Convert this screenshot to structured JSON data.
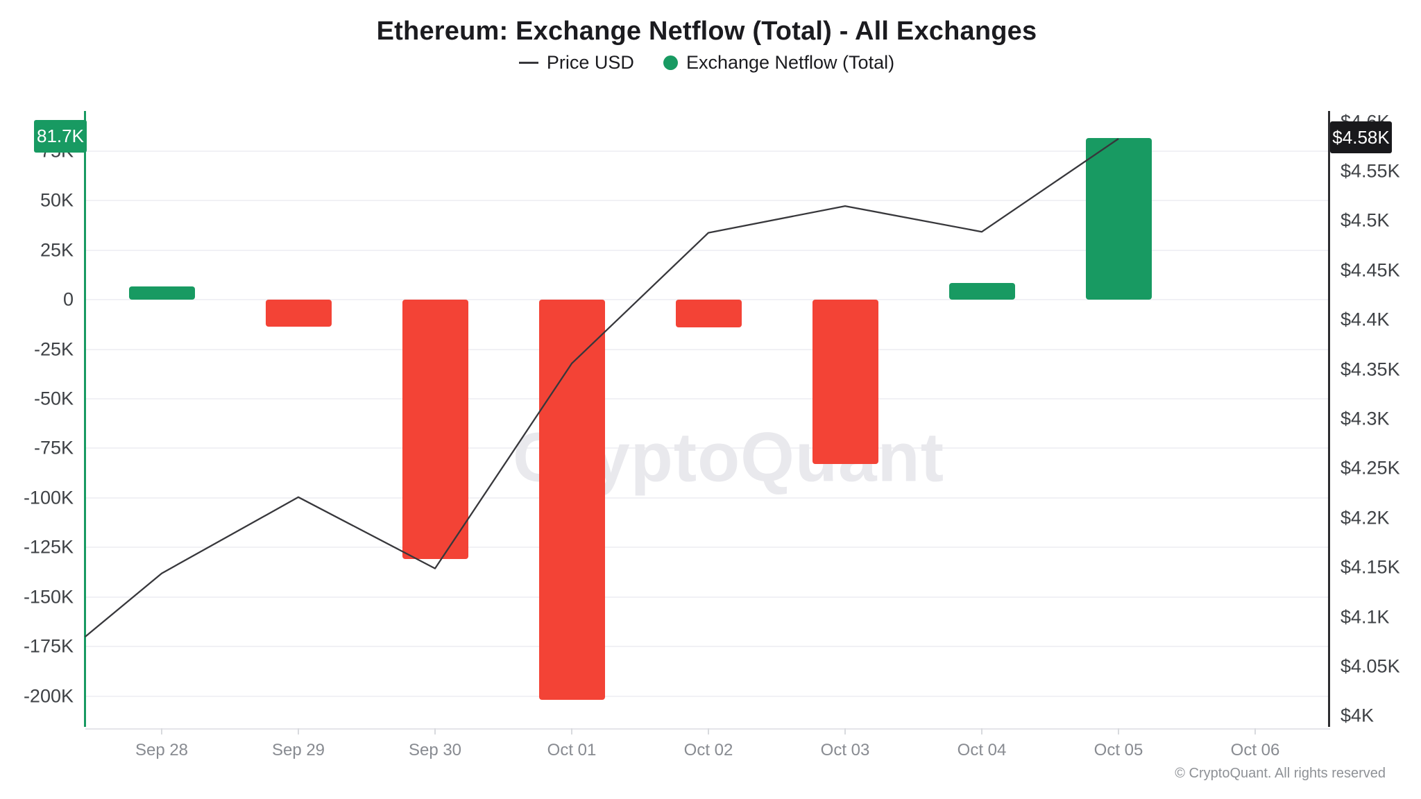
{
  "title": "Ethereum: Exchange Netflow (Total) - All Exchanges",
  "legend": {
    "price_label": "Price USD",
    "netflow_label": "Exchange Netflow (Total)"
  },
  "badges": {
    "netflow": "81.7K",
    "price": "$4.58K"
  },
  "watermark": "CryptoQuant",
  "copyright": "© CryptoQuant. All rights reserved",
  "colors": {
    "green": "#189a62",
    "red": "#f34336",
    "line": "#37373b",
    "grid": "#f1f1f5",
    "ink": "#1b1b1f",
    "ylab": "#3f4246",
    "xlab": "#888b91",
    "tick": "#d8dade",
    "xaxis": "#e4e5e9",
    "right_axis": "#2d2d30",
    "dark": "#19191c",
    "watermark": "#e9e9ed",
    "copy": "#8e9196"
  },
  "chart_data": {
    "type": "bar+line",
    "title": "Ethereum: Exchange Netflow (Total) - All Exchanges",
    "categories": [
      "Sep 28",
      "Sep 29",
      "Sep 30",
      "Oct 01",
      "Oct 02",
      "Oct 03",
      "Oct 04",
      "Oct 05",
      "Oct 06"
    ],
    "grid": true,
    "legend_position": "top",
    "series": [
      {
        "name": "Exchange Netflow (Total)",
        "type": "bar",
        "axis": "left",
        "values": [
          6700,
          -13500,
          -131000,
          -202000,
          -14000,
          -83000,
          8500,
          81700,
          null
        ]
      },
      {
        "name": "Price USD",
        "type": "line",
        "axis": "right",
        "points": [
          {
            "i": -0.56,
            "v": 4080
          },
          {
            "i": 0,
            "v": 4144
          },
          {
            "i": 1,
            "v": 4221
          },
          {
            "i": 2,
            "v": 4149
          },
          {
            "i": 3,
            "v": 4356
          },
          {
            "i": 4,
            "v": 4488
          },
          {
            "i": 5,
            "v": 4515
          },
          {
            "i": 6,
            "v": 4489
          },
          {
            "i": 7,
            "v": 4583
          }
        ]
      }
    ],
    "left_axis": {
      "title": "Exchange Netflow (Total)",
      "min": -215580,
      "max": 95340,
      "ticks": [
        {
          "label": "75K",
          "v": 75000
        },
        {
          "label": "50K",
          "v": 50000
        },
        {
          "label": "25K",
          "v": 25000
        },
        {
          "label": "0",
          "v": 0
        },
        {
          "label": "-25K",
          "v": -25000
        },
        {
          "label": "-50K",
          "v": -50000
        },
        {
          "label": "-75K",
          "v": -75000
        },
        {
          "label": "-100K",
          "v": -100000
        },
        {
          "label": "-125K",
          "v": -125000
        },
        {
          "label": "-150K",
          "v": -150000
        },
        {
          "label": "-175K",
          "v": -175000
        },
        {
          "label": "-200K",
          "v": -200000
        }
      ]
    },
    "right_axis": {
      "title": "Price USD",
      "min": 3989,
      "max": 4611,
      "ticks": [
        {
          "label": "$4.6K",
          "v": 4600
        },
        {
          "label": "$4.55K",
          "v": 4550
        },
        {
          "label": "$4.5K",
          "v": 4500
        },
        {
          "label": "$4.45K",
          "v": 4450
        },
        {
          "label": "$4.4K",
          "v": 4400
        },
        {
          "label": "$4.35K",
          "v": 4350
        },
        {
          "label": "$4.3K",
          "v": 4300
        },
        {
          "label": "$4.25K",
          "v": 4250
        },
        {
          "label": "$4.2K",
          "v": 4200
        },
        {
          "label": "$4.15K",
          "v": 4150
        },
        {
          "label": "$4.1K",
          "v": 4100
        },
        {
          "label": "$4.05K",
          "v": 4050
        },
        {
          "label": "$4K",
          "v": 4000
        }
      ]
    }
  }
}
